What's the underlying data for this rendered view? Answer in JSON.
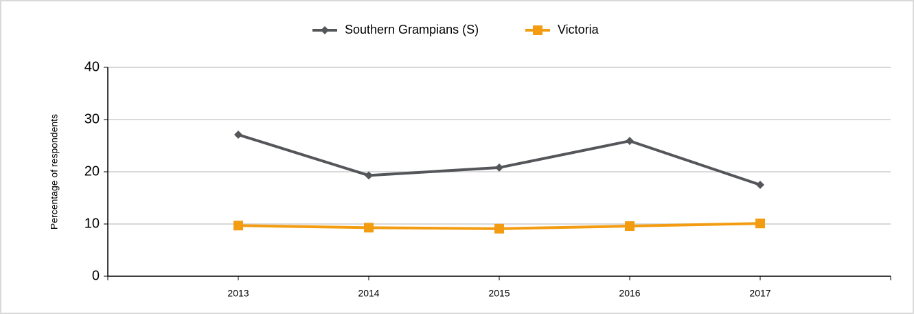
{
  "chart_data": {
    "type": "line",
    "categories": [
      "2013",
      "2014",
      "2015",
      "2016",
      "2017"
    ],
    "series": [
      {
        "name": "Southern Grampians (S)",
        "color": "#54565a",
        "marker": "diamond",
        "values": [
          27.1,
          19.3,
          20.8,
          25.9,
          17.5
        ]
      },
      {
        "name": "Victoria",
        "color": "#f39c12",
        "marker": "square",
        "values": [
          9.7,
          9.3,
          9.1,
          9.6,
          10.1
        ]
      }
    ],
    "y_label": "Percentage of respondents",
    "ylim": [
      0,
      40
    ],
    "yticks": [
      0,
      10,
      20,
      30,
      40
    ],
    "grid": true,
    "legend": "top"
  }
}
